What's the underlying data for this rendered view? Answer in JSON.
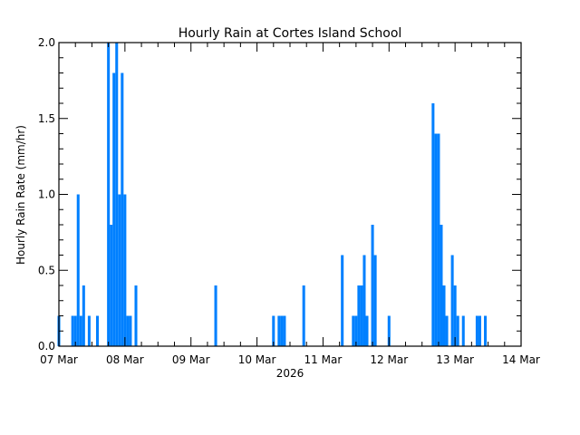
{
  "chart_data": {
    "type": "bar",
    "title": "Hourly Rain at Cortes Island School",
    "xlabel": "2026",
    "ylabel": "Hourly Rain Rate (mm/hr)",
    "ylim": [
      0,
      2.0
    ],
    "yticks": [
      "0.0",
      "0.5",
      "1.0",
      "1.5",
      "2.0"
    ],
    "y_minor_step": 0.1,
    "xticks": [
      "07 Mar",
      "08 Mar",
      "09 Mar",
      "10 Mar",
      "11 Mar",
      "12 Mar",
      "13 Mar",
      "14 Mar"
    ],
    "x_minor_step_hours": 6,
    "x_unit": "hours since 07 Mar 00:00",
    "xlim_hours": [
      0,
      168
    ],
    "grid": false,
    "legend": null,
    "bar_color": "#0080ff",
    "points": [
      {
        "hour": 0,
        "value": 0.2
      },
      {
        "hour": 5,
        "value": 0.2
      },
      {
        "hour": 6,
        "value": 0.2
      },
      {
        "hour": 7,
        "value": 1.0
      },
      {
        "hour": 8,
        "value": 0.2
      },
      {
        "hour": 9,
        "value": 0.4
      },
      {
        "hour": 11,
        "value": 0.2
      },
      {
        "hour": 14,
        "value": 0.2
      },
      {
        "hour": 18,
        "value": 2.0
      },
      {
        "hour": 19,
        "value": 0.8
      },
      {
        "hour": 20,
        "value": 1.8
      },
      {
        "hour": 21,
        "value": 2.0
      },
      {
        "hour": 22,
        "value": 1.0
      },
      {
        "hour": 23,
        "value": 1.8
      },
      {
        "hour": 24,
        "value": 1.0
      },
      {
        "hour": 25,
        "value": 0.2
      },
      {
        "hour": 26,
        "value": 0.2
      },
      {
        "hour": 28,
        "value": 0.4
      },
      {
        "hour": 57,
        "value": 0.4
      },
      {
        "hour": 78,
        "value": 0.2
      },
      {
        "hour": 80,
        "value": 0.2
      },
      {
        "hour": 81,
        "value": 0.2
      },
      {
        "hour": 82,
        "value": 0.2
      },
      {
        "hour": 89,
        "value": 0.4
      },
      {
        "hour": 103,
        "value": 0.6
      },
      {
        "hour": 107,
        "value": 0.2
      },
      {
        "hour": 108,
        "value": 0.2
      },
      {
        "hour": 109,
        "value": 0.4
      },
      {
        "hour": 110,
        "value": 0.4
      },
      {
        "hour": 111,
        "value": 0.6
      },
      {
        "hour": 112,
        "value": 0.2
      },
      {
        "hour": 114,
        "value": 0.8
      },
      {
        "hour": 115,
        "value": 0.6
      },
      {
        "hour": 120,
        "value": 0.2
      },
      {
        "hour": 136,
        "value": 1.6
      },
      {
        "hour": 137,
        "value": 1.4
      },
      {
        "hour": 138,
        "value": 1.4
      },
      {
        "hour": 139,
        "value": 0.8
      },
      {
        "hour": 140,
        "value": 0.4
      },
      {
        "hour": 141,
        "value": 0.2
      },
      {
        "hour": 143,
        "value": 0.6
      },
      {
        "hour": 144,
        "value": 0.4
      },
      {
        "hour": 145,
        "value": 0.2
      },
      {
        "hour": 147,
        "value": 0.2
      },
      {
        "hour": 152,
        "value": 0.2
      },
      {
        "hour": 153,
        "value": 0.2
      },
      {
        "hour": 155,
        "value": 0.2
      }
    ]
  }
}
